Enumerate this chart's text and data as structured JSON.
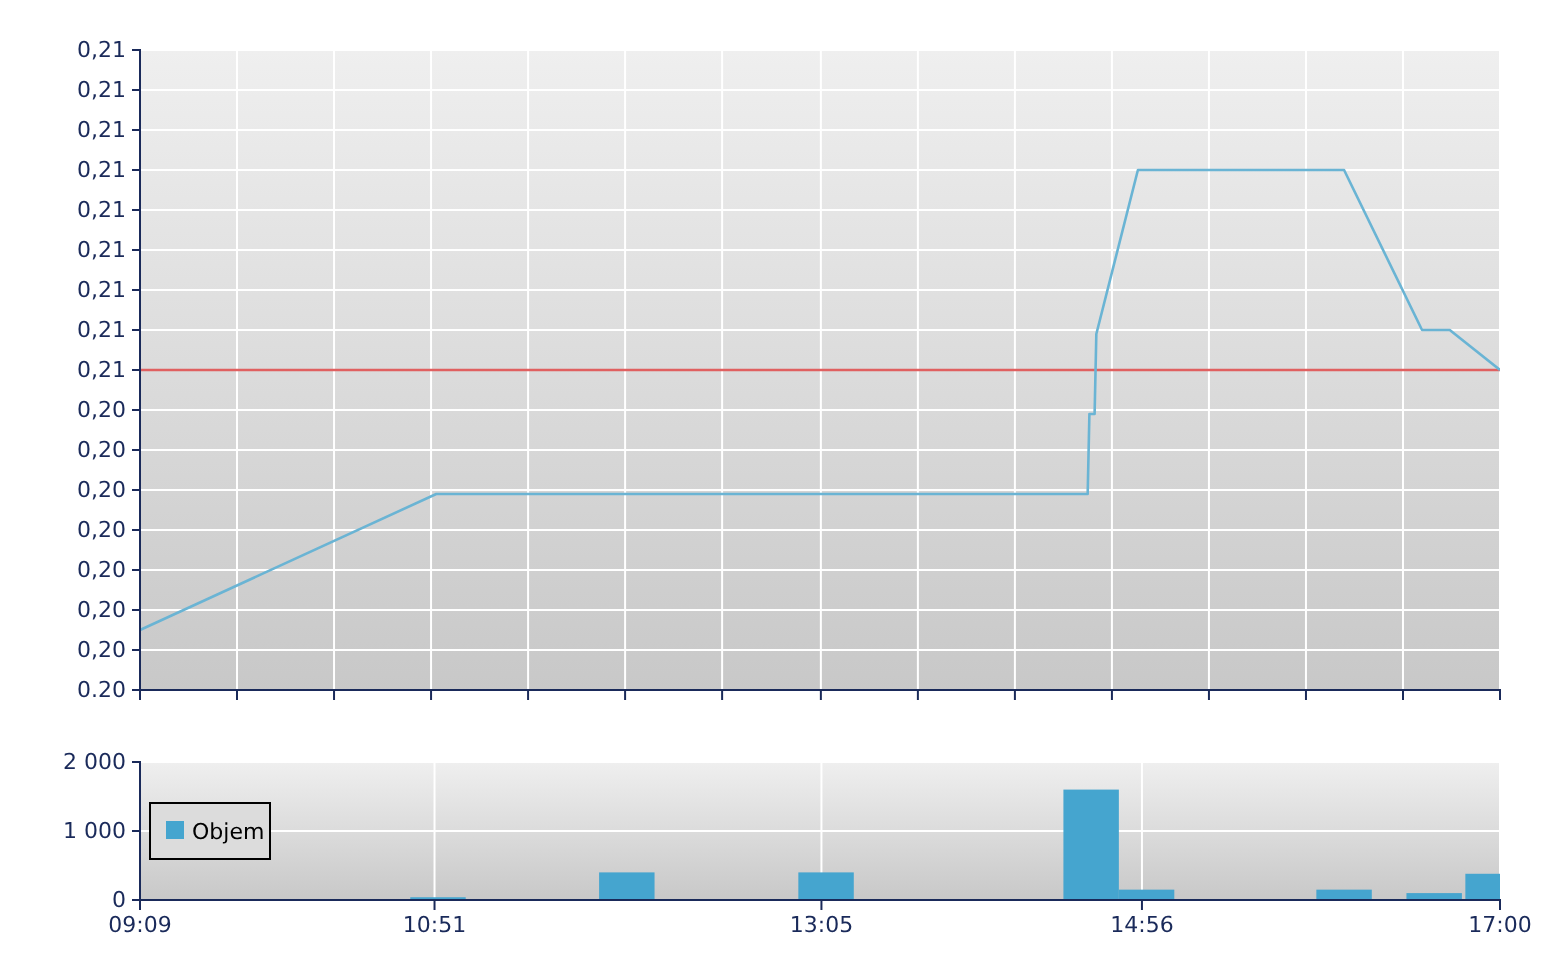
{
  "chart_data": [
    {
      "type": "line",
      "x": [
        9.15,
        10.86,
        14.62,
        14.63,
        14.66,
        14.67,
        14.91,
        16.1,
        16.55,
        16.71,
        17.0
      ],
      "series": [
        {
          "color": "#6ab4d4",
          "values": [
            0.199,
            0.2024,
            0.2024,
            0.2044,
            0.2044,
            0.2064,
            0.2105,
            0.2105,
            0.2065,
            0.2065,
            0.2055
          ]
        }
      ],
      "xlim": [
        9.15,
        17.0
      ],
      "xticks": [
        {
          "value": 9.15,
          "label": null
        },
        {
          "value": 9.71,
          "label": null
        },
        {
          "value": 10.27,
          "label": null
        },
        {
          "value": 10.83,
          "label": null
        },
        {
          "value": 11.39,
          "label": null
        },
        {
          "value": 11.95,
          "label": null
        },
        {
          "value": 12.51,
          "label": null
        },
        {
          "value": 13.08,
          "label": null
        },
        {
          "value": 13.64,
          "label": null
        },
        {
          "value": 14.2,
          "label": null
        },
        {
          "value": 14.76,
          "label": null
        },
        {
          "value": 15.32,
          "label": null
        },
        {
          "value": 15.88,
          "label": null
        },
        {
          "value": 16.44,
          "label": null
        },
        {
          "value": 17.0,
          "label": null
        }
      ],
      "ylim": [
        0.1975,
        0.2135
      ],
      "yticks": [
        {
          "value": 0.1975,
          "label": "0.20"
        },
        {
          "value": 0.1985,
          "label": "0,20"
        },
        {
          "value": 0.1995,
          "label": "0,20"
        },
        {
          "value": 0.2005,
          "label": "0,20"
        },
        {
          "value": 0.2015,
          "label": "0,20"
        },
        {
          "value": 0.2025,
          "label": "0,20"
        },
        {
          "value": 0.2035,
          "label": "0,20"
        },
        {
          "value": 0.2045,
          "label": "0,20"
        },
        {
          "value": 0.2055,
          "label": "0,21"
        },
        {
          "value": 0.2065,
          "label": "0,21"
        },
        {
          "value": 0.2075,
          "label": "0,21"
        },
        {
          "value": 0.2085,
          "label": "0,21"
        },
        {
          "value": 0.2095,
          "label": "0,21"
        },
        {
          "value": 0.2105,
          "label": "0,21"
        },
        {
          "value": 0.2115,
          "label": "0,21"
        },
        {
          "value": 0.2125,
          "label": "0,21"
        },
        {
          "value": 0.2135,
          "label": "0,21"
        }
      ],
      "ref_lines": [
        {
          "axis": "y",
          "value": 0.2055,
          "color": "#e06060"
        }
      ],
      "grid": true,
      "tick_labels": "y",
      "marker": "none"
    },
    {
      "type": "bar",
      "x": [
        10.87,
        11.96,
        13.11,
        14.64,
        14.96,
        16.1,
        16.62,
        16.96
      ],
      "series": [
        {
          "name": "Objem",
          "color": "#45a5cf",
          "values": [
            40,
            400,
            400,
            1600,
            150,
            150,
            100,
            380
          ]
        }
      ],
      "xlim": [
        9.15,
        17.0
      ],
      "xticks": [
        {
          "value": 9.15,
          "label": "09:09"
        },
        {
          "value": 10.85,
          "label": "10:51"
        },
        {
          "value": 13.0833,
          "label": "13:05"
        },
        {
          "value": 14.9333,
          "label": "14:56"
        },
        {
          "value": 17.0,
          "label": "17:00"
        }
      ],
      "ylim": [
        0,
        2000
      ],
      "yticks": [
        0,
        {
          "value": 1000,
          "label": "1 000"
        },
        {
          "value": 2000,
          "label": "2 000"
        }
      ],
      "grid": true,
      "legend": "left"
    }
  ]
}
